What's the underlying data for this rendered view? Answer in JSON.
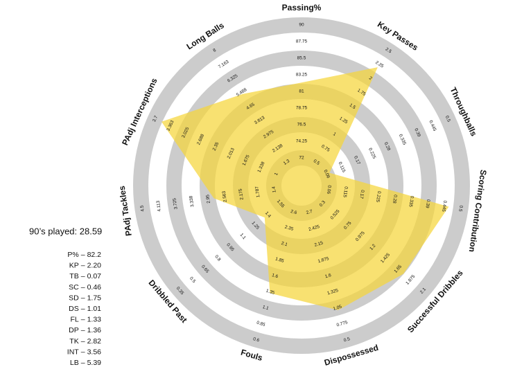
{
  "chart_data": {
    "type": "radar",
    "axes": [
      {
        "name": "Passing%",
        "ticks": [
          72,
          74.25,
          76.5,
          78.75,
          81,
          83.25,
          85.5,
          87.75,
          90
        ]
      },
      {
        "name": "Key Passes",
        "ticks": [
          0.5,
          0.75,
          1,
          1.25,
          1.5,
          1.75,
          2,
          2.25,
          2.5
        ]
      },
      {
        "name": "Throughballs",
        "ticks": [
          0.06,
          0.115,
          0.17,
          0.225,
          0.28,
          0.335,
          0.39,
          0.445,
          0.5
        ]
      },
      {
        "name": "Scoring Contribution",
        "ticks": [
          0.06,
          0.115,
          0.17,
          0.225,
          0.28,
          0.335,
          0.39,
          0.445,
          0.5
        ]
      },
      {
        "name": "Successful Dribbles",
        "ticks": [
          0.3,
          0.525,
          0.75,
          0.975,
          1.2,
          1.425,
          1.65,
          1.875,
          2.1
        ]
      },
      {
        "name": "Dispossessed",
        "ticks": [
          2.7,
          2.425,
          2.15,
          1.875,
          1.6,
          1.325,
          1.05,
          0.775,
          0.5
        ]
      },
      {
        "name": "Fouls",
        "ticks": [
          2.6,
          2.35,
          2.1,
          1.85,
          1.6,
          1.35,
          1.1,
          0.85,
          0.6
        ]
      },
      {
        "name": "Dribbled Past",
        "ticks": [
          1.55,
          1.4,
          1.25,
          1.1,
          0.95,
          0.8,
          0.65,
          0.5,
          0.35
        ]
      },
      {
        "name": "PAdj Tackles",
        "ticks": [
          1.4,
          1.787,
          2.175,
          2.563,
          2.95,
          3.338,
          3.725,
          4.113,
          4.5
        ]
      },
      {
        "name": "PAdj Interceptions",
        "ticks": [
          1,
          1.338,
          1.675,
          2.013,
          2.35,
          2.688,
          3.025,
          3.363,
          3.7
        ]
      },
      {
        "name": "Long Balls",
        "ticks": [
          1.3,
          2.138,
          2.975,
          3.813,
          4.65,
          5.488,
          6.325,
          7.163,
          8
        ]
      }
    ],
    "values": [
      82.2,
      2.2,
      0.07,
      0.46,
      1.75,
      1.01,
      1.33,
      1.36,
      2.82,
      3.56,
      5.39
    ],
    "value_labels": [
      "82.2",
      "2.20",
      "0.07",
      "0.46",
      "1.75",
      "1.01",
      "1.33",
      "1.36",
      "2.82",
      "3.56",
      "5.39"
    ],
    "abbreviations": [
      "P%",
      "KP",
      "TB",
      "SC",
      "SD",
      "DS",
      "FL",
      "DP",
      "TK",
      "INT",
      "LB"
    ],
    "separator": "–",
    "note": "90’s played: 28.59",
    "color": "#f5d53a",
    "ring_color": "#cccccc"
  }
}
